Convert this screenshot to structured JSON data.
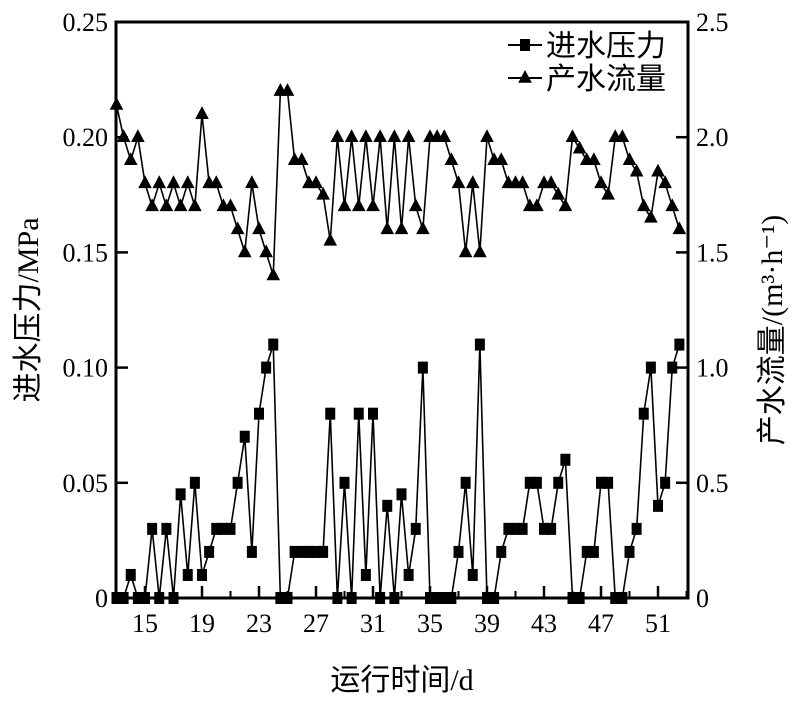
{
  "chart_data": {
    "type": "line",
    "xlabel": "运行时间/d",
    "ylabel_left": "进水压力/MPa",
    "ylabel_right": "产水流量/(m³·h⁻¹)",
    "xlim": [
      13,
      53
    ],
    "ylim_left": [
      0,
      0.25
    ],
    "ylim_right": [
      0,
      2.5
    ],
    "x_ticks": [
      15,
      19,
      23,
      27,
      31,
      35,
      39,
      43,
      47,
      51
    ],
    "y_left_ticks": [
      "0",
      "0.05",
      "0.10",
      "0.15",
      "0.20",
      "0.25"
    ],
    "y_right_ticks": [
      "0",
      "0.5",
      "1.0",
      "1.5",
      "2.0",
      "2.5"
    ],
    "grid": false,
    "legend_position": "top-right",
    "x_start": 13,
    "x_step": 0.5,
    "series": [
      {
        "name": "进水压力",
        "axis": "left",
        "marker": "square",
        "color": "#000000",
        "values": [
          0,
          0,
          0.01,
          0,
          0,
          0.03,
          0,
          0.03,
          0,
          0.045,
          0.01,
          0.05,
          0.01,
          0.02,
          0.03,
          0.03,
          0.03,
          0.05,
          0.07,
          0.02,
          0.08,
          0.1,
          0.11,
          0,
          0,
          0.02,
          0.02,
          0.02,
          0.02,
          0.02,
          0.08,
          0,
          0.05,
          0,
          0.08,
          0.01,
          0.08,
          0,
          0.04,
          0,
          0.045,
          0.01,
          0.03,
          0.1,
          0,
          0,
          0,
          0,
          0.02,
          0.05,
          0.01,
          0.11,
          0,
          0,
          0.02,
          0.03,
          0.03,
          0.03,
          0.05,
          0.05,
          0.03,
          0.03,
          0.05,
          0.06,
          0,
          0,
          0.02,
          0.02,
          0.05,
          0.05,
          0,
          0,
          0.02,
          0.03,
          0.08,
          0.1,
          0.04,
          0.05,
          0.1,
          0.11
        ]
      },
      {
        "name": "产水流量",
        "axis": "right",
        "marker": "triangle",
        "color": "#000000",
        "values": [
          2.14,
          2.0,
          1.9,
          2.0,
          1.8,
          1.7,
          1.8,
          1.7,
          1.8,
          1.7,
          1.8,
          1.7,
          2.1,
          1.8,
          1.8,
          1.7,
          1.7,
          1.6,
          1.5,
          1.8,
          1.6,
          1.5,
          1.4,
          2.2,
          2.2,
          1.9,
          1.9,
          1.8,
          1.8,
          1.75,
          1.55,
          2.0,
          1.7,
          2.0,
          1.7,
          2.0,
          1.7,
          2.0,
          1.6,
          2.0,
          1.6,
          2.0,
          1.7,
          1.6,
          2.0,
          2.0,
          2.0,
          1.9,
          1.8,
          1.5,
          1.8,
          1.5,
          2.0,
          1.9,
          1.9,
          1.8,
          1.8,
          1.8,
          1.7,
          1.7,
          1.8,
          1.8,
          1.75,
          1.7,
          2.0,
          1.95,
          1.9,
          1.9,
          1.8,
          1.75,
          2.0,
          2.0,
          1.9,
          1.85,
          1.7,
          1.65,
          1.85,
          1.8,
          1.7,
          1.6
        ]
      }
    ]
  }
}
